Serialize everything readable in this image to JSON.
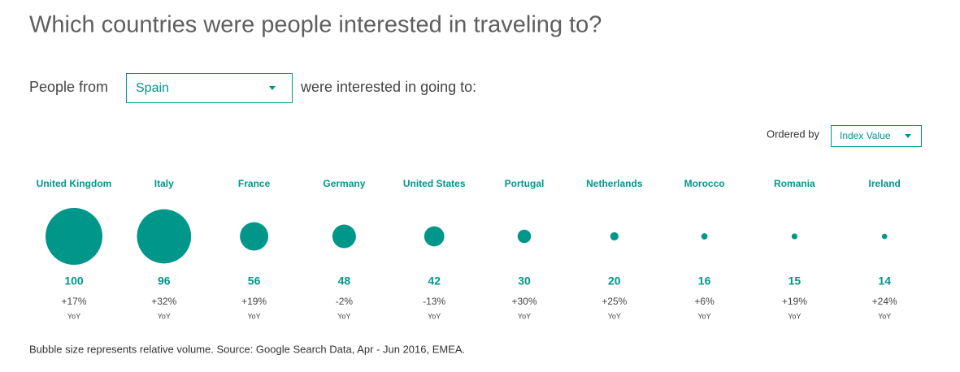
{
  "header": {
    "title": "Which countries were people interested in traveling to?",
    "lead": "People from",
    "origin": "Spain",
    "trail": "were interested in going to:",
    "order_label": "Ordered by",
    "order_value": "Index Value"
  },
  "chart_data": {
    "type": "bubble",
    "color": "#00978a",
    "categories": [
      "United Kingdom",
      "Italy",
      "France",
      "Germany",
      "United States",
      "Portugal",
      "Netherlands",
      "Morocco",
      "Romania",
      "Ireland"
    ],
    "values": [
      100,
      96,
      56,
      48,
      42,
      30,
      20,
      16,
      15,
      14
    ],
    "yoy": [
      17,
      32,
      19,
      -2,
      -13,
      30,
      25,
      6,
      19,
      24
    ],
    "yoy_labels": [
      "+17%",
      "+32%",
      "+19%",
      "-2%",
      "-13%",
      "+30%",
      "+25%",
      "+6%",
      "+19%",
      "+24%"
    ],
    "yoy_unit": "YoY",
    "note": "Bubble size represents relative volume. Source: Google Search Data, Apr - Jun 2016, EMEA."
  }
}
